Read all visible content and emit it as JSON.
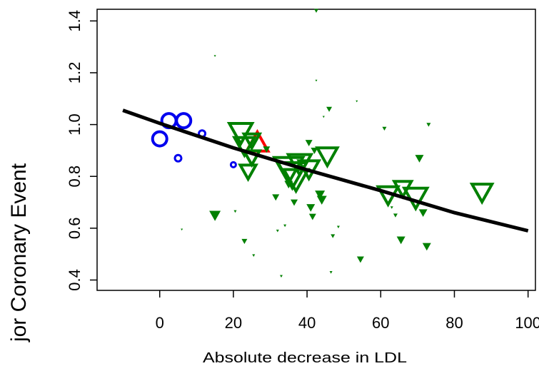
{
  "chart_data": {
    "type": "scatter",
    "title": "",
    "xlabel": "Absolute decrease in LDL",
    "ylabel": "jor Coronary Event",
    "xlim": [
      -17,
      102
    ],
    "ylim": [
      0.36,
      1.445
    ],
    "x_ticks": [
      0,
      20,
      40,
      60,
      80,
      100
    ],
    "y_ticks": [
      0.4,
      0.6,
      0.8,
      1.0,
      1.2,
      1.4
    ],
    "x_tick_labels": [
      "0",
      "20",
      "40",
      "60",
      "80",
      "100"
    ],
    "y_tick_labels": [
      "0.4",
      "0.6",
      "0.8",
      "1.0",
      "1.2",
      "1.4"
    ],
    "grid": false,
    "legend": "none",
    "colors": {
      "circles": "#0000ee",
      "triangle_up": "#ff0000",
      "triangles_down": "#008000",
      "fit_line": "#000000"
    },
    "series": [
      {
        "marker": "circle",
        "color": "#0000ee",
        "points": [
          {
            "x": 0,
            "y": 0.945,
            "size": 10
          },
          {
            "x": 2.5,
            "y": 1.015,
            "size": 10
          },
          {
            "x": 6.5,
            "y": 1.015,
            "size": 10
          },
          {
            "x": 11.5,
            "y": 0.965,
            "size": 4.5
          },
          {
            "x": 5,
            "y": 0.87,
            "size": 4.5
          },
          {
            "x": 20,
            "y": 0.845,
            "size": 3.5
          }
        ]
      },
      {
        "marker": "triangle-up",
        "color": "#ff0000",
        "points": [
          {
            "x": 26.5,
            "y": 0.93,
            "size": 15
          }
        ]
      },
      {
        "marker": "triangle-down",
        "color": "#008000",
        "points": [
          {
            "x": 22,
            "y": 0.97,
            "size": 16,
            "open": true
          },
          {
            "x": 23,
            "y": 0.92,
            "size": 14,
            "open": true
          },
          {
            "x": 25,
            "y": 0.94,
            "size": 11,
            "open": true
          },
          {
            "x": 25,
            "y": 0.875,
            "size": 11,
            "open": true
          },
          {
            "x": 24,
            "y": 0.82,
            "size": 11,
            "open": true
          },
          {
            "x": 35,
            "y": 0.83,
            "size": 20,
            "open": true
          },
          {
            "x": 36,
            "y": 0.81,
            "size": 20,
            "open": true
          },
          {
            "x": 37,
            "y": 0.79,
            "size": 17,
            "open": true
          },
          {
            "x": 38,
            "y": 0.85,
            "size": 16,
            "open": true
          },
          {
            "x": 40.5,
            "y": 0.83,
            "size": 14,
            "open": true
          },
          {
            "x": 45.5,
            "y": 0.88,
            "size": 14,
            "open": true
          },
          {
            "x": 62,
            "y": 0.73,
            "size": 14,
            "open": true
          },
          {
            "x": 66,
            "y": 0.755,
            "size": 12,
            "open": true
          },
          {
            "x": 69.5,
            "y": 0.72,
            "size": 16,
            "open": true
          },
          {
            "x": 87.5,
            "y": 0.74,
            "size": 14,
            "open": true
          },
          {
            "x": 15,
            "y": 0.65,
            "size": 8
          },
          {
            "x": 20.5,
            "y": 0.665,
            "size": 2
          },
          {
            "x": 23,
            "y": 0.55,
            "size": 4
          },
          {
            "x": 25.5,
            "y": 0.495,
            "size": 2
          },
          {
            "x": 29,
            "y": 0.905,
            "size": 5
          },
          {
            "x": 31.5,
            "y": 0.72,
            "size": 5
          },
          {
            "x": 32,
            "y": 0.59,
            "size": 2
          },
          {
            "x": 33,
            "y": 0.415,
            "size": 2
          },
          {
            "x": 34,
            "y": 0.61,
            "size": 2
          },
          {
            "x": 35,
            "y": 0.77,
            "size": 6
          },
          {
            "x": 36.5,
            "y": 0.7,
            "size": 5
          },
          {
            "x": 40.5,
            "y": 0.93,
            "size": 5
          },
          {
            "x": 41,
            "y": 0.68,
            "size": 6
          },
          {
            "x": 41.5,
            "y": 0.645,
            "size": 5
          },
          {
            "x": 42,
            "y": 0.9,
            "size": 5
          },
          {
            "x": 43.5,
            "y": 0.73,
            "size": 7
          },
          {
            "x": 44,
            "y": 0.71,
            "size": 7
          },
          {
            "x": 46,
            "y": 1.06,
            "size": 4
          },
          {
            "x": 46.5,
            "y": 0.43,
            "size": 2
          },
          {
            "x": 47,
            "y": 0.57,
            "size": 3
          },
          {
            "x": 48.5,
            "y": 0.605,
            "size": 2
          },
          {
            "x": 54.5,
            "y": 0.48,
            "size": 5
          },
          {
            "x": 42.5,
            "y": 1.44,
            "size": 3
          },
          {
            "x": 42.5,
            "y": 1.17,
            "size": 1.5
          },
          {
            "x": 44.5,
            "y": 1.03,
            "size": 1.5
          },
          {
            "x": 53.5,
            "y": 1.09,
            "size": 1.5
          },
          {
            "x": 61,
            "y": 0.985,
            "size": 3
          },
          {
            "x": 63,
            "y": 0.68,
            "size": 2
          },
          {
            "x": 64,
            "y": 0.65,
            "size": 3
          },
          {
            "x": 65.5,
            "y": 0.555,
            "size": 6
          },
          {
            "x": 70.5,
            "y": 0.87,
            "size": 6
          },
          {
            "x": 71.5,
            "y": 0.66,
            "size": 6
          },
          {
            "x": 72.5,
            "y": 0.53,
            "size": 6
          },
          {
            "x": 73,
            "y": 1.0,
            "size": 3
          },
          {
            "x": 6,
            "y": 0.595,
            "size": 1.5
          },
          {
            "x": 15,
            "y": 1.265,
            "size": 1.5
          }
        ]
      }
    ],
    "fit_line": [
      {
        "x": -10,
        "y": 1.055
      },
      {
        "x": 0,
        "y": 1.005
      },
      {
        "x": 20,
        "y": 0.91
      },
      {
        "x": 40,
        "y": 0.825
      },
      {
        "x": 60,
        "y": 0.745
      },
      {
        "x": 80,
        "y": 0.66
      },
      {
        "x": 100,
        "y": 0.59
      }
    ]
  }
}
